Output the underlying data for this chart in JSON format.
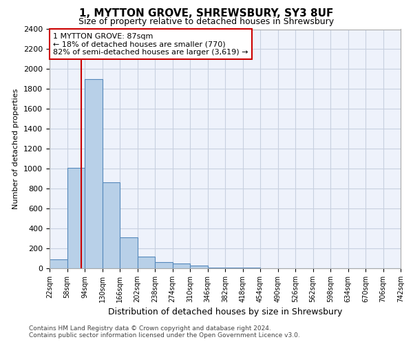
{
  "title1": "1, MYTTON GROVE, SHREWSBURY, SY3 8UF",
  "title2": "Size of property relative to detached houses in Shrewsbury",
  "xlabel": "Distribution of detached houses by size in Shrewsbury",
  "ylabel": "Number of detached properties",
  "bin_edges": [
    22,
    58,
    94,
    130,
    166,
    202,
    238,
    274,
    310,
    346,
    382,
    418,
    454,
    490,
    526,
    562,
    598,
    634,
    670,
    706,
    742
  ],
  "bar_heights": [
    90,
    1010,
    1900,
    860,
    310,
    115,
    60,
    45,
    25,
    10,
    5,
    5,
    3,
    2,
    2,
    2,
    2,
    1,
    1,
    1
  ],
  "bar_color": "#b8d0e8",
  "bar_edge_color": "#5588bb",
  "property_size": 87,
  "vline_color": "#cc0000",
  "annotation_line1": "1 MYTTON GROVE: 87sqm",
  "annotation_line2": "← 18% of detached houses are smaller (770)",
  "annotation_line3": "82% of semi-detached houses are larger (3,619) →",
  "annotation_box_color": "#cc0000",
  "ylim": [
    0,
    2400
  ],
  "yticks": [
    0,
    200,
    400,
    600,
    800,
    1000,
    1200,
    1400,
    1600,
    1800,
    2000,
    2200,
    2400
  ],
  "footer1": "Contains HM Land Registry data © Crown copyright and database right 2024.",
  "footer2": "Contains public sector information licensed under the Open Government Licence v3.0.",
  "bg_color": "#eef2fb",
  "grid_color": "#c8d0e0"
}
